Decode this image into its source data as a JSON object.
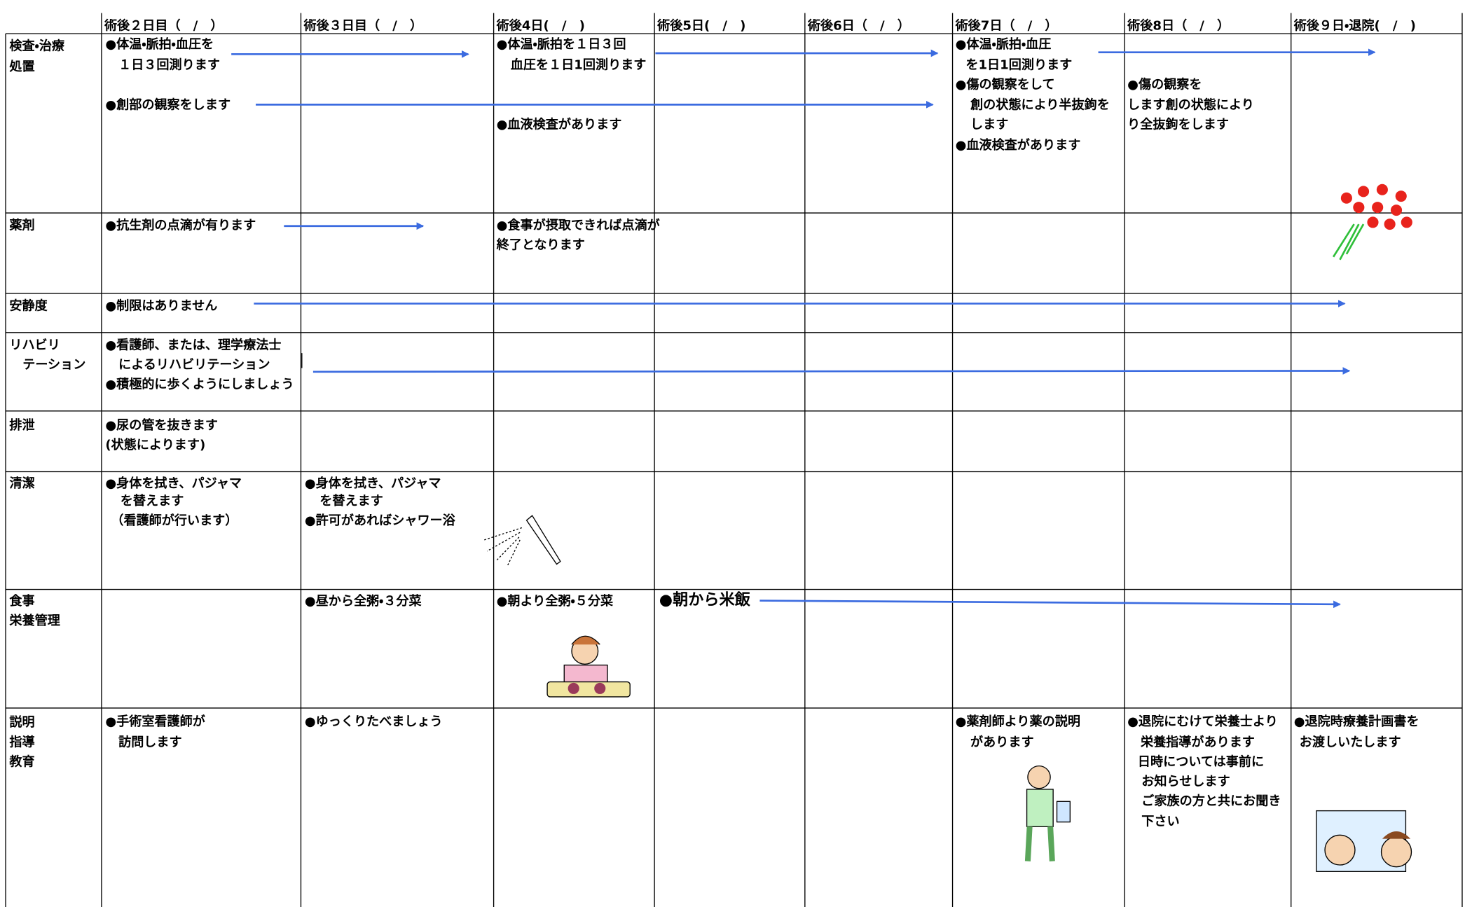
{
  "header": {
    "columns": [
      "術後２日目（　/　）",
      "術後３日目（　/　）",
      "術後4日(　/　)",
      "術後5日(　/　)",
      "術後6日（　/　）",
      "術後7日（　/　）",
      "術後8日（　/　）",
      "術後９日・退院(　/　)"
    ]
  },
  "rows": [
    {
      "label": [
        "検査・治療",
        "処置"
      ],
      "cells": [
        [
          "●体温・脈拍・血圧を",
          "１日３回測ります",
          "●創部の観察をします"
        ],
        [],
        [
          "●体温・脈拍を１日３回",
          "血圧を１日1回測ります",
          "●血液検査があります"
        ],
        [],
        [],
        [
          "●体温・脈拍・血圧",
          "を1日1回測ります",
          "●傷の観察をして",
          "創の状態により半抜鉤を",
          "します",
          "●血液検査があります"
        ],
        [
          "●傷の観察を",
          "します創の状態により",
          "り全抜鉤をします"
        ],
        []
      ]
    },
    {
      "label": [
        "薬剤"
      ],
      "cells": [
        [
          "●抗生剤の点滴が有ります"
        ],
        [],
        [
          "●食事が摂取できれば点滴が",
          "終了となります"
        ],
        [],
        [],
        [],
        [],
        []
      ]
    },
    {
      "label": [
        "安静度"
      ],
      "cells": [
        [
          "●制限はありません"
        ],
        [],
        [],
        [],
        [],
        [],
        [],
        []
      ]
    },
    {
      "label": [
        "リハビリ",
        "テーション"
      ],
      "cells": [
        [
          "●看護師、または、理学療法士",
          "によるリハビリテーション",
          "●積極的に歩くようにしましょう"
        ],
        [],
        [],
        [],
        [],
        [],
        [],
        []
      ]
    },
    {
      "label": [
        "排泄"
      ],
      "cells": [
        [
          "●尿の管を抜きます",
          "(状態によります)"
        ],
        [],
        [],
        [],
        [],
        [],
        [],
        []
      ]
    },
    {
      "label": [
        "清潔"
      ],
      "cells": [
        [
          "●身体を拭き、パジャマ",
          "を替えます",
          "（看護師が行います）"
        ],
        [
          "●身体を拭き、パジャマ",
          "を替えます",
          "●許可があればシャワー浴"
        ],
        [],
        [],
        [],
        [],
        [],
        []
      ]
    },
    {
      "label": [
        "食事",
        "栄養管理"
      ],
      "cells": [
        [],
        [
          "●昼から全粥・３分菜"
        ],
        [
          "●朝より全粥・５分菜"
        ],
        [
          "●朝から米飯"
        ],
        [],
        [],
        [],
        []
      ]
    },
    {
      "label": [
        "説明",
        "指導",
        "教育"
      ],
      "cells": [
        [
          "●手術室看護師が",
          "訪問します"
        ],
        [
          "●ゆっくりたべましょう"
        ],
        [],
        [],
        [],
        [
          "●薬剤師より薬の説明",
          "があります"
        ],
        [
          "●退院にむけて栄養士より",
          "栄養指導があります",
          "日時については事前に",
          "お知らせします",
          "ご家族の方と共にお聞き",
          "下さい"
        ],
        [
          "●退院時療養計画書を",
          "お渡しいたします"
        ]
      ]
    }
  ]
}
